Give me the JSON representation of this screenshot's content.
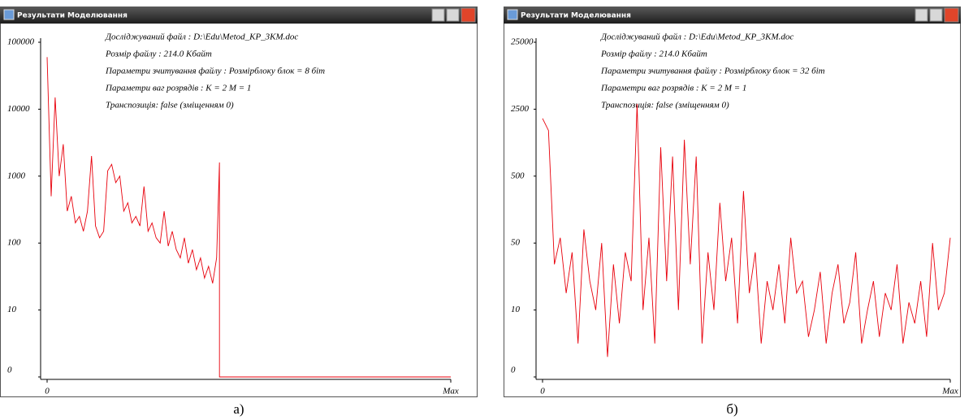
{
  "windows": [
    {
      "title": "Результати Моделювання",
      "caption": "а)"
    },
    {
      "title": "Результати Моделювання",
      "caption": "б)"
    }
  ],
  "chart_data": [
    {
      "type": "line",
      "annotations": [
        "Досліджуваний файл : D:\\Edu\\Metod_KP_3KM.doc",
        "Розмір файлу : 214.0 Кбайт",
        "Параметри зчитування файлу :  Розмірблоку блок = 8 біт",
        "Параметри ваг розрядів : K = 2  M = 1",
        "Транспозиція: false (зміщенням 0)"
      ],
      "color": "#e8000b",
      "yscale": "tick-interpolated",
      "x": [
        0,
        1,
        2,
        3,
        4,
        5,
        6,
        7,
        8,
        9,
        10,
        11,
        12,
        13,
        14,
        15,
        16,
        17,
        18,
        19,
        20,
        21,
        22,
        23,
        24,
        25,
        26,
        27,
        28,
        29,
        30,
        31,
        32,
        33,
        34,
        35,
        36,
        37,
        38,
        39,
        40,
        41,
        42,
        42.7,
        42.7,
        100
      ],
      "values": [
        60000,
        500,
        15000,
        1000,
        3000,
        300,
        500,
        200,
        250,
        150,
        300,
        2000,
        180,
        120,
        150,
        1200,
        1500,
        800,
        1000,
        300,
        400,
        200,
        250,
        180,
        700,
        150,
        200,
        120,
        100,
        300,
        90,
        150,
        80,
        60,
        120,
        50,
        80,
        40,
        60,
        30,
        45,
        25,
        60,
        1600,
        0,
        0
      ],
      "xlim": [
        0,
        100
      ],
      "xticks": [
        0,
        {
          "value": 100,
          "label": "Max"
        }
      ],
      "ylim": [
        0,
        100000
      ],
      "yticks": [
        0,
        10,
        100,
        1000,
        10000,
        100000
      ]
    },
    {
      "type": "line",
      "annotations": [
        "Досліджуваний файл : D:\\Edu\\Metod_KP_3KM.doc",
        "Розмір файлу : 214.0 Кбайт",
        "Параметри зчитування файлу :  Розмірблоку блок = 32 біт",
        "Параметри ваг розрядів : K = 2  M = 1",
        "Транспозиція: false (зміщенням 0)"
      ],
      "color": "#e8000b",
      "yscale": "tick-interpolated",
      "x": [
        0,
        1,
        2,
        3,
        4,
        5,
        6,
        7,
        8,
        9,
        10,
        11,
        12,
        13,
        14,
        15,
        16,
        17,
        18,
        19,
        20,
        21,
        22,
        23,
        24,
        25,
        26,
        27,
        28,
        29,
        30,
        31,
        32,
        33,
        34,
        35,
        36,
        37,
        38,
        39,
        40,
        41,
        42,
        43,
        44,
        45,
        46,
        47,
        48,
        49,
        50,
        51,
        52,
        53,
        54,
        55,
        56,
        57,
        58,
        59,
        60,
        61,
        62,
        63,
        64,
        65,
        66,
        67,
        68,
        69
      ],
      "values": [
        2000,
        1500,
        30,
        60,
        15,
        40,
        5,
        80,
        20,
        10,
        50,
        3,
        30,
        8,
        40,
        20,
        3000,
        10,
        60,
        5,
        1000,
        20,
        800,
        10,
        1200,
        30,
        800,
        5,
        40,
        10,
        200,
        20,
        60,
        8,
        300,
        15,
        40,
        5,
        20,
        10,
        30,
        8,
        60,
        15,
        20,
        6,
        10,
        25,
        5,
        15,
        30,
        8,
        12,
        40,
        5,
        10,
        20,
        6,
        15,
        10,
        30,
        5,
        12,
        8,
        20,
        6,
        50,
        10,
        15,
        60
      ],
      "xlim": [
        0,
        69
      ],
      "xticks": [
        0,
        {
          "value": 69,
          "label": "Max"
        }
      ],
      "ylim": [
        0,
        25000
      ],
      "yticks": [
        0,
        10,
        50,
        500,
        2500,
        25000
      ]
    }
  ]
}
